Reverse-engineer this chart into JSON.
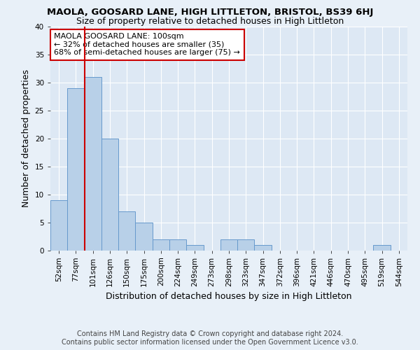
{
  "title": "MAOLA, GOOSARD LANE, HIGH LITTLETON, BRISTOL, BS39 6HJ",
  "subtitle": "Size of property relative to detached houses in High Littleton",
  "xlabel": "Distribution of detached houses by size in High Littleton",
  "ylabel": "Number of detached properties",
  "footer_line1": "Contains HM Land Registry data © Crown copyright and database right 2024.",
  "footer_line2": "Contains public sector information licensed under the Open Government Licence v3.0.",
  "bin_labels": [
    "52sqm",
    "77sqm",
    "101sqm",
    "126sqm",
    "150sqm",
    "175sqm",
    "200sqm",
    "224sqm",
    "249sqm",
    "273sqm",
    "298sqm",
    "323sqm",
    "347sqm",
    "372sqm",
    "396sqm",
    "421sqm",
    "446sqm",
    "470sqm",
    "495sqm",
    "519sqm",
    "544sqm"
  ],
  "bar_values": [
    9,
    29,
    31,
    20,
    7,
    5,
    2,
    2,
    1,
    0,
    2,
    2,
    1,
    0,
    0,
    0,
    0,
    0,
    0,
    1,
    0
  ],
  "bar_color": "#b8d0e8",
  "bar_edge_color": "#6699cc",
  "vline_index": 2,
  "vline_color": "#cc0000",
  "annotation_text": "MAOLA GOOSARD LANE: 100sqm\n← 32% of detached houses are smaller (35)\n68% of semi-detached houses are larger (75) →",
  "annotation_box_color": "#ffffff",
  "annotation_box_edge_color": "#cc0000",
  "background_color": "#e8f0f8",
  "plot_bg_color": "#dde8f4",
  "ylim": [
    0,
    40
  ],
  "yticks": [
    0,
    5,
    10,
    15,
    20,
    25,
    30,
    35,
    40
  ],
  "title_fontsize": 9.5,
  "subtitle_fontsize": 9,
  "xlabel_fontsize": 9,
  "ylabel_fontsize": 9,
  "tick_fontsize": 7.5,
  "annotation_fontsize": 8,
  "footer_fontsize": 7
}
